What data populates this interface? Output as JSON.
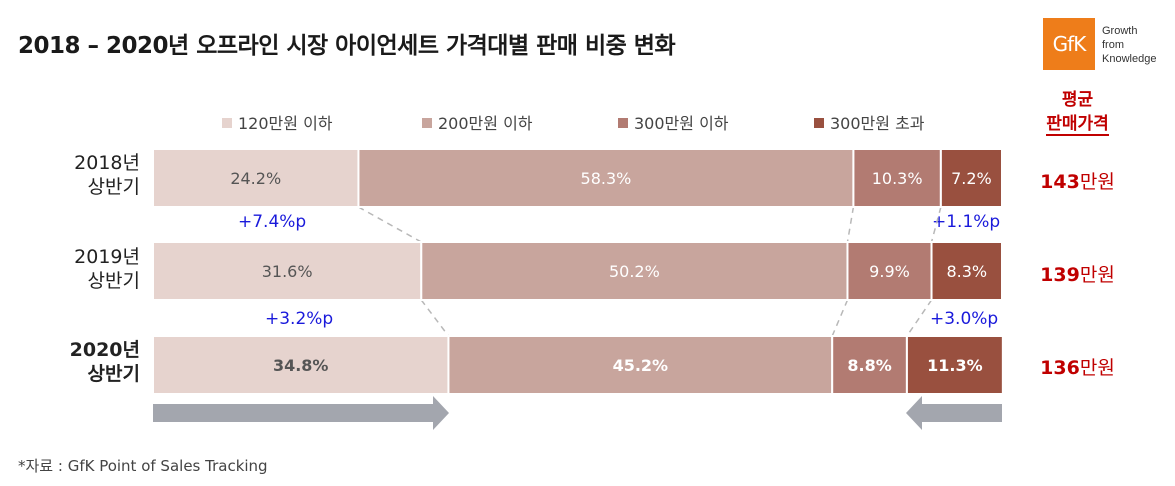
{
  "title": "2018 – 2020년 오프라인 시장 아이언세트 가격대별 판매 비중 변화",
  "logo": {
    "mark": "GfK",
    "tagline": "Growth\nfrom\nKnowledge"
  },
  "source": "*자료 : GfK Point of Sales Tracking",
  "avg_header": {
    "line1": "평균",
    "line2": "판매가격"
  },
  "colors": {
    "seg1": "#e6d3ce",
    "seg2": "#c8a59d",
    "seg3": "#b27b72",
    "seg4": "#99503f",
    "change": "#1a1adb",
    "avg": "#c00000",
    "arrow": "#a3a6ae"
  },
  "chart_data": {
    "type": "bar",
    "orientation": "horizontal",
    "stacked": true,
    "categories": [
      "2018년 상반기",
      "2019년 상반기",
      "2020년 상반기"
    ],
    "category_lines": [
      [
        "2018년",
        "상반기"
      ],
      [
        "2019년",
        "상반기"
      ],
      [
        "2020년",
        "상반기"
      ]
    ],
    "series": [
      {
        "name": "120만원 이하",
        "values": [
          24.2,
          31.6,
          34.8
        ],
        "labels": [
          "24.2%",
          "31.6%",
          "34.8%"
        ]
      },
      {
        "name": "200만원 이하",
        "values": [
          58.3,
          50.2,
          45.2
        ],
        "labels": [
          "58.3%",
          "50.2%",
          "45.2%"
        ]
      },
      {
        "name": "300만원 이하",
        "values": [
          10.3,
          9.9,
          8.8
        ],
        "labels": [
          "10.3%",
          "9.9%",
          "8.8%"
        ]
      },
      {
        "name": "300만원 초과",
        "values": [
          7.2,
          8.3,
          11.3
        ],
        "labels": [
          "7.2%",
          "8.3%",
          "11.3%"
        ]
      }
    ],
    "xlim": [
      0,
      100
    ],
    "legend_position": "top",
    "average_price": {
      "values": [
        143,
        139,
        136
      ],
      "numbers": [
        "143",
        "139",
        "136"
      ],
      "unit": "만원"
    },
    "changes": [
      {
        "between": [
          "2018년 상반기",
          "2019년 상반기"
        ],
        "series": "120만원 이하",
        "label": "+7.4%p"
      },
      {
        "between": [
          "2018년 상반기",
          "2019년 상반기"
        ],
        "series": "300만원 초과",
        "label": "+1.1%p"
      },
      {
        "between": [
          "2019년 상반기",
          "2020년 상반기"
        ],
        "series": "120만원 이하",
        "label": "+3.2%p"
      },
      {
        "between": [
          "2019년 상반기",
          "2020년 상반기"
        ],
        "series": "300만원 초과",
        "label": "+3.0%p"
      }
    ],
    "trend_arrows": [
      "right",
      "left"
    ]
  }
}
